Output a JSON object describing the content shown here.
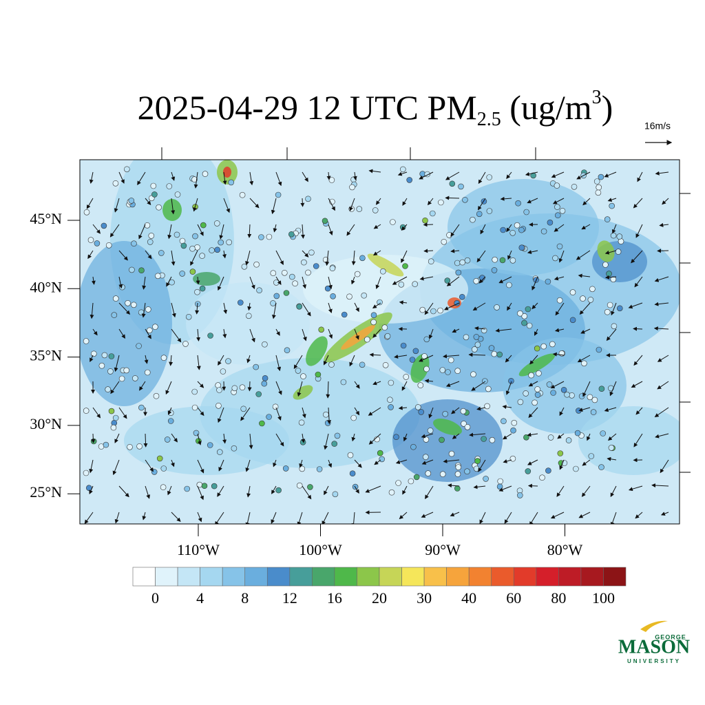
{
  "title": {
    "prefix": "2025-04-29 12 UTC PM",
    "subscript": "2.5",
    "unit": " (ug/m",
    "superscript": "3",
    "close": ")"
  },
  "vector_reference": "16m/s",
  "lat_labels": [
    "45°N",
    "40°N",
    "35°N",
    "30°N",
    "25°N"
  ],
  "lon_labels": [
    "110°W",
    "100°W",
    "90°W",
    "80°W"
  ],
  "colorbar": {
    "labels": [
      "0",
      "4",
      "8",
      "12",
      "16",
      "20",
      "30",
      "40",
      "60",
      "80",
      "100"
    ],
    "colors": [
      "#ffffff",
      "#e0f3fb",
      "#c4e6f6",
      "#a5d7f0",
      "#86c3e8",
      "#6aaede",
      "#4a8ccb",
      "#479e9a",
      "#49a66b",
      "#4fb84a",
      "#8cc64a",
      "#c6d557",
      "#f5e65a",
      "#f8c04a",
      "#f6a43c",
      "#f28230",
      "#ea5b2c",
      "#e23b2a",
      "#d51f2a",
      "#be1c26",
      "#a7191f",
      "#8c1416"
    ]
  },
  "logo": {
    "top": "GEORGE",
    "main": "MASON",
    "bottom": "UNIVERSITY"
  }
}
